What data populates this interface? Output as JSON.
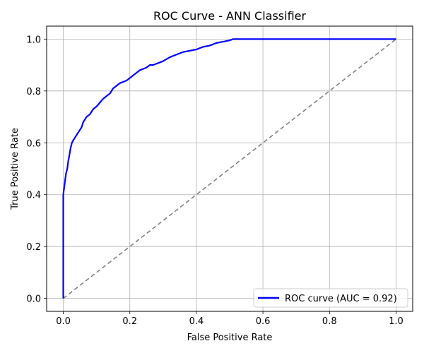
{
  "chart_data": {
    "type": "line",
    "title": "ROC Curve - ANN Classifier",
    "xlabel": "False Positive Rate",
    "ylabel": "True Positive Rate",
    "xlim": [
      -0.05,
      1.05
    ],
    "ylim": [
      -0.05,
      1.05
    ],
    "xticks": [
      0.0,
      0.2,
      0.4,
      0.6,
      0.8,
      1.0
    ],
    "yticks": [
      0.0,
      0.2,
      0.4,
      0.6,
      0.8,
      1.0
    ],
    "xtick_labels": [
      "0.0",
      "0.2",
      "0.4",
      "0.6",
      "0.8",
      "1.0"
    ],
    "ytick_labels": [
      "0.0",
      "0.2",
      "0.4",
      "0.6",
      "0.8",
      "1.0"
    ],
    "grid": true,
    "legend_position": "lower-right",
    "series": [
      {
        "name": "ROC curve (AUC = 0.92)",
        "color": "#0000ff",
        "style": "solid",
        "x": [
          0.0,
          0.0,
          0.002,
          0.005,
          0.008,
          0.012,
          0.015,
          0.018,
          0.022,
          0.026,
          0.03,
          0.035,
          0.04,
          0.045,
          0.05,
          0.055,
          0.06,
          0.065,
          0.07,
          0.075,
          0.08,
          0.09,
          0.1,
          0.11,
          0.12,
          0.13,
          0.14,
          0.15,
          0.16,
          0.17,
          0.18,
          0.19,
          0.2,
          0.21,
          0.22,
          0.23,
          0.24,
          0.25,
          0.26,
          0.27,
          0.28,
          0.29,
          0.3,
          0.32,
          0.34,
          0.36,
          0.38,
          0.4,
          0.42,
          0.44,
          0.46,
          0.48,
          0.5,
          0.51,
          0.52,
          0.6,
          0.7,
          0.8,
          0.9,
          1.0
        ],
        "y": [
          0.0,
          0.4,
          0.42,
          0.45,
          0.48,
          0.5,
          0.53,
          0.55,
          0.58,
          0.6,
          0.61,
          0.62,
          0.63,
          0.64,
          0.65,
          0.66,
          0.68,
          0.69,
          0.7,
          0.705,
          0.71,
          0.73,
          0.74,
          0.755,
          0.77,
          0.78,
          0.79,
          0.81,
          0.82,
          0.83,
          0.835,
          0.84,
          0.85,
          0.86,
          0.87,
          0.88,
          0.885,
          0.89,
          0.9,
          0.9,
          0.905,
          0.91,
          0.915,
          0.93,
          0.94,
          0.95,
          0.955,
          0.96,
          0.97,
          0.975,
          0.985,
          0.99,
          0.995,
          1.0,
          1.0,
          1.0,
          1.0,
          1.0,
          1.0,
          1.0
        ]
      },
      {
        "name": "",
        "color": "#808080",
        "style": "dashed",
        "x": [
          0.0,
          1.0
        ],
        "y": [
          0.0,
          1.0
        ]
      }
    ]
  }
}
